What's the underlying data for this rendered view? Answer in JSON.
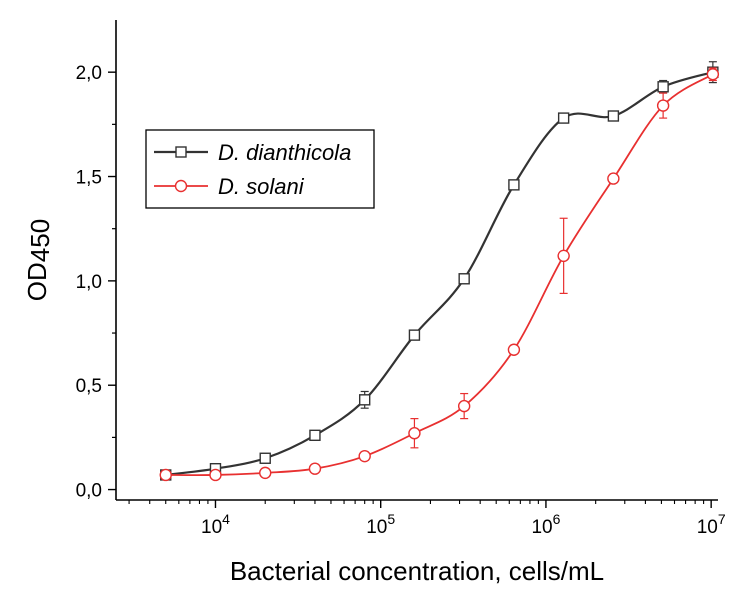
{
  "chart_data": {
    "type": "line",
    "xscale": "log",
    "xlabel": "Bacterial concentration, cells/mL",
    "ylabel": "OD450",
    "xlim": [
      2500,
      11000000
    ],
    "ylim": [
      -0.05,
      2.25
    ],
    "yticks": [
      {
        "value": 0.0,
        "label": "0,0"
      },
      {
        "value": 0.5,
        "label": "0,5"
      },
      {
        "value": 1.0,
        "label": "1,0"
      },
      {
        "value": 1.5,
        "label": "1,5"
      },
      {
        "value": 2.0,
        "label": "2,0"
      }
    ],
    "xticks": [
      {
        "value": 10000,
        "base": "10",
        "exp": "4"
      },
      {
        "value": 100000,
        "base": "10",
        "exp": "5"
      },
      {
        "value": 1000000,
        "base": "10",
        "exp": "6"
      },
      {
        "value": 10000000,
        "base": "10",
        "exp": "7"
      }
    ],
    "legend_position": "upper-left",
    "series": [
      {
        "name": "D. dianthicola",
        "color": "#333333",
        "marker": "square",
        "x": [
          5000,
          10000,
          20000,
          40000,
          80000,
          160000,
          320000,
          640000,
          1280000,
          2560000,
          5120000,
          10240000
        ],
        "y": [
          0.07,
          0.1,
          0.15,
          0.26,
          0.43,
          0.74,
          1.01,
          1.46,
          1.78,
          1.79,
          1.93,
          2.0
        ],
        "err": [
          0.02,
          0.02,
          0.02,
          0.02,
          0.04,
          0.02,
          0.02,
          0.01,
          0.02,
          0.02,
          0.03,
          0.05
        ]
      },
      {
        "name": "D. solani",
        "color": "#e83030",
        "marker": "circle",
        "x": [
          5000,
          10000,
          20000,
          40000,
          80000,
          160000,
          320000,
          640000,
          1280000,
          2560000,
          5120000,
          10240000
        ],
        "y": [
          0.07,
          0.07,
          0.08,
          0.1,
          0.16,
          0.27,
          0.4,
          0.67,
          1.12,
          1.49,
          1.84,
          1.99
        ],
        "err": [
          0.02,
          0.02,
          0.02,
          0.02,
          0.02,
          0.07,
          0.06,
          0.02,
          0.18,
          0.02,
          0.06,
          0.03
        ]
      }
    ]
  }
}
